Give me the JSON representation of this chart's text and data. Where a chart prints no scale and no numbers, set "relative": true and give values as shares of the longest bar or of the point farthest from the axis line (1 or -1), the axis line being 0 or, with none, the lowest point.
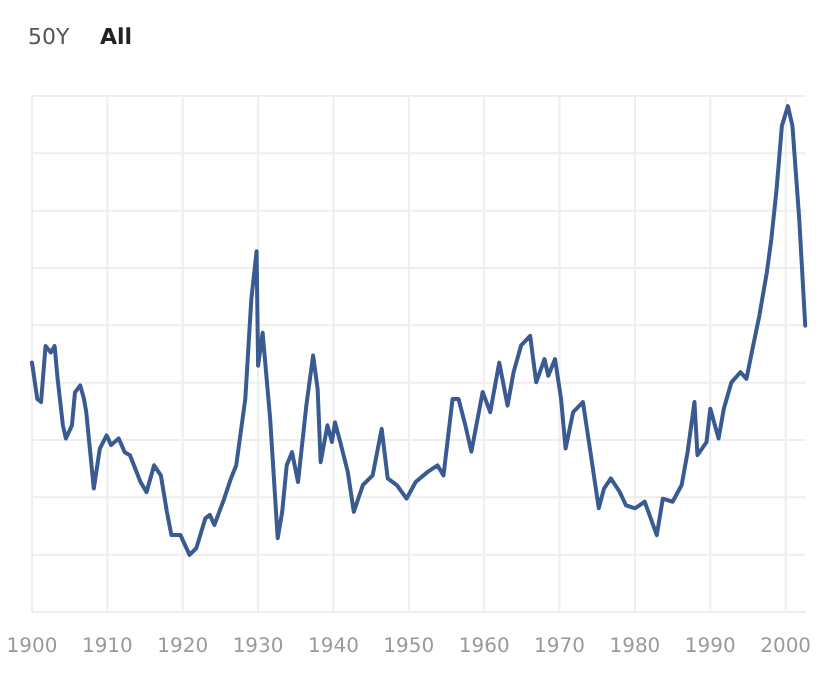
{
  "chart_data": {
    "type": "line",
    "relative": true,
    "grid": true,
    "annotations": [
      "50Y",
      "All"
    ],
    "xlim": [
      1900,
      2002.7
    ],
    "xticks": [
      1900,
      1910,
      1920,
      1930,
      1940,
      1950,
      1960,
      1970,
      1980,
      1990,
      2000
    ],
    "x": [
      1900,
      1900.7,
      1901.2,
      1901.8,
      1902.5,
      1903,
      1903.4,
      1904.1,
      1904.5,
      1905.3,
      1905.7,
      1906.4,
      1906.9,
      1907.2,
      1908.2,
      1909,
      1909.9,
      1910.5,
      1911.5,
      1912.3,
      1913,
      1914.4,
      1915.2,
      1916.2,
      1917.1,
      1917.9,
      1918.5,
      1919.7,
      1920.9,
      1921.8,
      1923,
      1923.6,
      1924.2,
      1925.5,
      1926.4,
      1927.1,
      1928.3,
      1929.1,
      1929.8,
      1930,
      1930.6,
      1931.6,
      1932.6,
      1933.2,
      1933.8,
      1934.5,
      1935.3,
      1936.4,
      1937.3,
      1937.9,
      1938.3,
      1939.2,
      1939.8,
      1940.2,
      1941,
      1941.9,
      1942.7,
      1943.9,
      1945.2,
      1946.4,
      1947.2,
      1948.4,
      1949.7,
      1950.9,
      1952.5,
      1953.8,
      1954.6,
      1955.8,
      1956.6,
      1957.5,
      1958.3,
      1959.8,
      1960.8,
      1962,
      1963.1,
      1963.9,
      1964.9,
      1966.1,
      1966.9,
      1968,
      1968.5,
      1969.4,
      1970.2,
      1970.8,
      1971.8,
      1973.1,
      1973.9,
      1975.2,
      1975.9,
      1976.8,
      1978,
      1978.8,
      1980,
      1981.3,
      1982.9,
      1983.7,
      1985,
      1986.2,
      1987,
      1987.9,
      1988.3,
      1989.5,
      1990,
      1991.1,
      1991.8,
      1992.8,
      1994,
      1994.8,
      1995.6,
      1996.5,
      1997.5,
      1998.1,
      1998.8,
      1999.5,
      2000.3,
      2000.9,
      2001.8,
      2002.6
    ],
    "series": [
      {
        "color": "#3a5a92",
        "values": [
          0.493,
          0.421,
          0.415,
          0.526,
          0.513,
          0.526,
          0.461,
          0.369,
          0.343,
          0.369,
          0.434,
          0.448,
          0.421,
          0.395,
          0.244,
          0.323,
          0.349,
          0.33,
          0.343,
          0.316,
          0.31,
          0.257,
          0.237,
          0.29,
          0.27,
          0.198,
          0.152,
          0.152,
          0.113,
          0.126,
          0.185,
          0.192,
          0.172,
          0.224,
          0.264,
          0.29,
          0.421,
          0.618,
          0.713,
          0.487,
          0.552,
          0.382,
          0.146,
          0.198,
          0.29,
          0.316,
          0.257,
          0.408,
          0.507,
          0.441,
          0.296,
          0.369,
          0.336,
          0.375,
          0.33,
          0.277,
          0.198,
          0.251,
          0.27,
          0.362,
          0.264,
          0.251,
          0.224,
          0.257,
          0.277,
          0.29,
          0.27,
          0.421,
          0.421,
          0.369,
          0.317,
          0.435,
          0.395,
          0.493,
          0.408,
          0.474,
          0.527,
          0.546,
          0.454,
          0.5,
          0.467,
          0.5,
          0.421,
          0.323,
          0.395,
          0.415,
          0.336,
          0.205,
          0.244,
          0.264,
          0.237,
          0.211,
          0.205,
          0.218,
          0.152,
          0.224,
          0.218,
          0.251,
          0.317,
          0.415,
          0.31,
          0.336,
          0.402,
          0.343,
          0.402,
          0.454,
          0.474,
          0.461,
          0.52,
          0.585,
          0.671,
          0.737,
          0.836,
          0.961,
          1.0,
          0.961,
          0.777,
          0.566
        ]
      }
    ]
  }
}
